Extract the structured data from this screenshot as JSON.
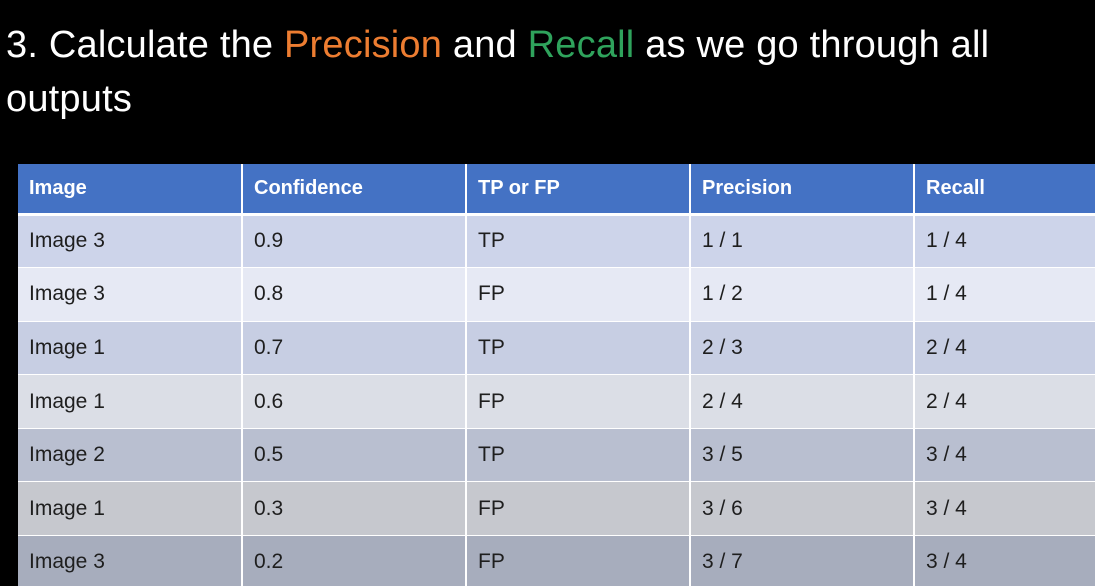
{
  "title": {
    "prefix": "3. Calculate the ",
    "precision_word": "Precision",
    "middle": " and ",
    "recall_word": "Recall",
    "suffix": " as we go through all outputs"
  },
  "colors": {
    "precision": "#ed7d31",
    "recall": "#2fa35c",
    "header_bg": "#4472c4"
  },
  "table": {
    "headers": [
      "Image",
      "Confidence",
      "TP or FP",
      "Precision",
      "Recall"
    ],
    "rows": [
      [
        "Image 3",
        "0.9",
        "TP",
        "1 / 1",
        "1 / 4"
      ],
      [
        "Image 3",
        "0.8",
        "FP",
        "1 / 2",
        "1 / 4"
      ],
      [
        "Image 1",
        "0.7",
        "TP",
        "2 / 3",
        "2 / 4"
      ],
      [
        "Image 1",
        "0.6",
        "FP",
        "2 / 4",
        "2 / 4"
      ],
      [
        "Image 2",
        "0.5",
        "TP",
        "3 / 5",
        "3 / 4"
      ],
      [
        "Image 1",
        "0.3",
        "FP",
        "3 / 6",
        "3 / 4"
      ],
      [
        "Image 3",
        "0.2",
        "FP",
        "3 / 7",
        "3 / 4"
      ]
    ]
  }
}
